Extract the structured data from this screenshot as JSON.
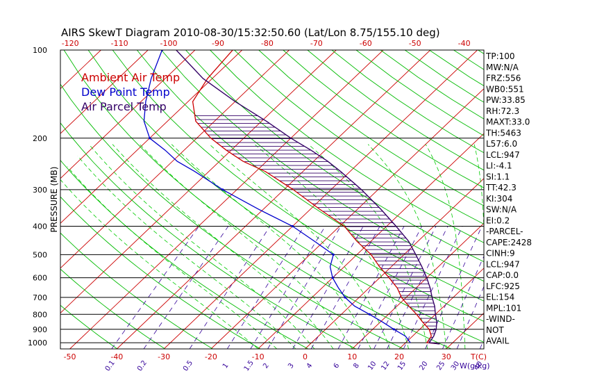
{
  "chart_data": {
    "type": "line",
    "title": "AIRS SkewT Diagram 2010-08-30/15:32:50.60 (Lat/Lon 8.75/155.10 deg)",
    "ylabel": "PRESSURE (MB)",
    "xlabel": "T(C)",
    "mixing_label": "W(g/kg)",
    "legend": [
      {
        "name": "Ambient Air Temp",
        "color": "#cc0000"
      },
      {
        "name": "Dew Point Temp",
        "color": "#0000cc"
      },
      {
        "name": "Air Parcel Temp",
        "color": "#330066"
      }
    ],
    "pressure_ticks": [
      100,
      200,
      300,
      400,
      500,
      600,
      700,
      800,
      900,
      1000
    ],
    "pressure_range": [
      1050,
      100
    ],
    "bottom_temp_ticks": [
      -50,
      -40,
      -30,
      -20,
      -10,
      0,
      10,
      20,
      30
    ],
    "bottom_temp_range": [
      -52,
      38
    ],
    "top_temp_ticks": [
      -120,
      -110,
      -100,
      -90,
      -80,
      -70,
      -60,
      -50,
      -40
    ],
    "top_temp_range": [
      -122,
      -36
    ],
    "mixing_ratio_ticks": [
      0.1,
      0.2,
      0.5,
      1,
      1.5,
      2,
      3,
      4,
      6,
      8,
      10,
      12,
      15,
      20,
      25,
      30,
      40
    ],
    "series": [
      {
        "name": "Ambient Air Temp",
        "color": "#cc0000",
        "points": [
          {
            "p": 1010,
            "t": 27.5
          },
          {
            "p": 1000,
            "t": 24.5
          },
          {
            "p": 950,
            "t": 24
          },
          {
            "p": 900,
            "t": 22
          },
          {
            "p": 850,
            "t": 19
          },
          {
            "p": 800,
            "t": 16
          },
          {
            "p": 750,
            "t": 12.5
          },
          {
            "p": 700,
            "t": 9
          },
          {
            "p": 650,
            "t": 6
          },
          {
            "p": 600,
            "t": 2
          },
          {
            "p": 550,
            "t": -2.5
          },
          {
            "p": 500,
            "t": -7
          },
          {
            "p": 450,
            "t": -13
          },
          {
            "p": 400,
            "t": -19
          },
          {
            "p": 350,
            "t": -28
          },
          {
            "p": 300,
            "t": -38
          },
          {
            "p": 260,
            "t": -48
          },
          {
            "p": 240,
            "t": -55
          },
          {
            "p": 220,
            "t": -61
          },
          {
            "p": 200,
            "t": -67
          },
          {
            "p": 175,
            "t": -74
          },
          {
            "p": 150,
            "t": -79
          },
          {
            "p": 125,
            "t": -81
          },
          {
            "p": 100,
            "t": -82
          }
        ]
      },
      {
        "name": "Dew Point Temp",
        "color": "#0000cc",
        "points": [
          {
            "p": 1000,
            "t": 21
          },
          {
            "p": 950,
            "t": 18.5
          },
          {
            "p": 900,
            "t": 14.5
          },
          {
            "p": 850,
            "t": 10.5
          },
          {
            "p": 800,
            "t": 6
          },
          {
            "p": 750,
            "t": 1
          },
          {
            "p": 700,
            "t": -3
          },
          {
            "p": 650,
            "t": -6.5
          },
          {
            "p": 600,
            "t": -10
          },
          {
            "p": 550,
            "t": -13
          },
          {
            "p": 500,
            "t": -15
          },
          {
            "p": 450,
            "t": -22
          },
          {
            "p": 400,
            "t": -30
          },
          {
            "p": 350,
            "t": -41
          },
          {
            "p": 300,
            "t": -53
          },
          {
            "p": 260,
            "t": -63
          },
          {
            "p": 240,
            "t": -69
          },
          {
            "p": 220,
            "t": -74
          },
          {
            "p": 200,
            "t": -80
          },
          {
            "p": 175,
            "t": -85
          },
          {
            "p": 150,
            "t": -89
          },
          {
            "p": 125,
            "t": -93
          },
          {
            "p": 100,
            "t": -97
          }
        ]
      },
      {
        "name": "Air Parcel Temp",
        "color": "#330066",
        "points": [
          {
            "p": 1010,
            "t": 27.5
          },
          {
            "p": 1000,
            "t": 25
          },
          {
            "p": 950,
            "t": 24.5
          },
          {
            "p": 900,
            "t": 23.5
          },
          {
            "p": 850,
            "t": 22
          },
          {
            "p": 800,
            "t": 20
          },
          {
            "p": 750,
            "t": 18
          },
          {
            "p": 700,
            "t": 15.5
          },
          {
            "p": 650,
            "t": 13
          },
          {
            "p": 600,
            "t": 10
          },
          {
            "p": 550,
            "t": 6.5
          },
          {
            "p": 500,
            "t": 2.5
          },
          {
            "p": 450,
            "t": -2
          },
          {
            "p": 400,
            "t": -8
          },
          {
            "p": 350,
            "t": -15
          },
          {
            "p": 300,
            "t": -23.5
          },
          {
            "p": 260,
            "t": -32
          },
          {
            "p": 240,
            "t": -37
          },
          {
            "p": 220,
            "t": -43
          },
          {
            "p": 200,
            "t": -50
          },
          {
            "p": 175,
            "t": -59
          },
          {
            "p": 150,
            "t": -70
          },
          {
            "p": 125,
            "t": -82
          },
          {
            "p": 100,
            "t": -94
          }
        ]
      }
    ],
    "indices": [
      "TP:100",
      "MW:N/A",
      "FRZ:556",
      "WB0:551",
      "PW:33.85",
      "RH:72.3",
      "MAXT:33.0",
      "TH:5463",
      "L57:6.0",
      "LCL:947",
      "LI:-4.1",
      "SI:1.1",
      "TT:42.3",
      "KI:304",
      "SW:N/A",
      "EI:0.2",
      "-PARCEL-",
      "CAPE:2428",
      "CINH:9",
      "LCL:947",
      "CAP:0.0",
      "LFC:925",
      "EL:154",
      "MPL:101",
      "-WIND-",
      "NOT",
      "AVAIL"
    ],
    "colors": {
      "isotherm": "#cc0000",
      "dry_adiabat": "#00bb00",
      "moist_adiabat": "#00cc00",
      "mixing_ratio": "#330099",
      "isobar": "#000000",
      "hatch": "#330066"
    }
  }
}
